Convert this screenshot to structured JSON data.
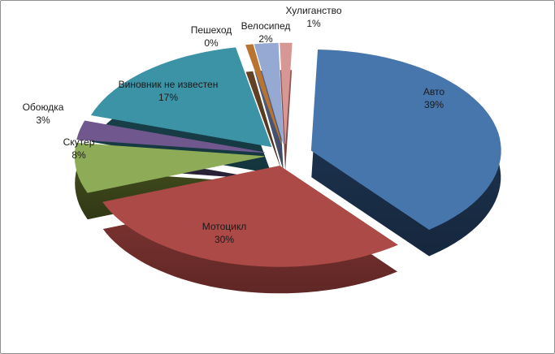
{
  "chart_data": {
    "type": "pie",
    "style": "3d-exploded-pie",
    "title": "",
    "legend": "none",
    "data_label_format": "category name + percent",
    "background": "#FFFFFF",
    "frame_border_color": "#8F8F8F",
    "label_text_color": "#1A1A1A",
    "categories": [
      "Авто",
      "Мотоцикл",
      "Скутер",
      "Обоюдка",
      "Виновник не известен",
      "Пешеход",
      "Велосипед",
      "Хулиганство"
    ],
    "values": [
      39,
      30,
      8,
      3,
      17,
      0,
      2,
      1
    ],
    "slices": [
      {
        "label": "Авто",
        "value": 39,
        "pct_label": "39%",
        "color": "#4776AC",
        "side_color": "#203A5A"
      },
      {
        "label": "Мотоцикл",
        "value": 30,
        "pct_label": "30%",
        "color": "#AB4A46",
        "side_color": "#8C3A37"
      },
      {
        "label": "Скутер",
        "value": 8,
        "pct_label": "8%",
        "color": "#8EAC57",
        "side_color": "#47531F"
      },
      {
        "label": "Обоюдка",
        "value": 3,
        "pct_label": "3%",
        "color": "#70588F",
        "side_color": "#3A2E4D"
      },
      {
        "label": "Виновник не известен",
        "value": 17,
        "pct_label": "17%",
        "color": "#3C93A6",
        "side_color": "#1D4D58"
      },
      {
        "label": "Пешеход",
        "value": 0,
        "pct_label": "0%",
        "color": "#B9742F",
        "side_color": "#6E4827"
      },
      {
        "label": "Велосипед",
        "value": 2,
        "pct_label": "2%",
        "color": "#95A9D2",
        "side_color": "#5A688F"
      },
      {
        "label": "Хулиганство",
        "value": 1,
        "pct_label": "1%",
        "color": "#D69795",
        "side_color": "#A05F5C"
      }
    ]
  }
}
